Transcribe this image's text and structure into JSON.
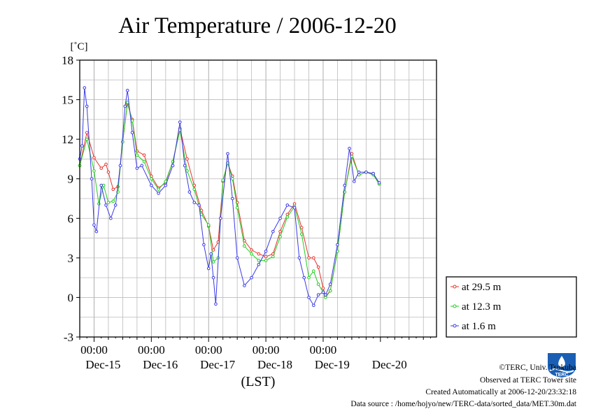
{
  "chart_data": {
    "type": "line",
    "title": "Air Temperature / 2006-12-20",
    "ylabel": "[˚C]",
    "xlabel": "(LST)",
    "ylim": [
      -3,
      18
    ],
    "yticks": [
      "-3",
      "0",
      "3",
      "6",
      "9",
      "12",
      "15",
      "18"
    ],
    "grid": true,
    "legend_position": "bottom-right (outside plot)",
    "x_start": "2006-12-14 18:00",
    "x_end": "2006-12-20 23:30",
    "time_ticks": [
      "00:00",
      "00:00",
      "00:00",
      "00:00",
      "00:00"
    ],
    "day_labels": [
      "Dec-15",
      "Dec-16",
      "Dec-17",
      "Dec-18",
      "Dec-19",
      "Dec-20"
    ],
    "series": [
      {
        "name": "at 29.5 m",
        "color": "#e8322c",
        "points": [
          [
            "2006-12-14 18:00",
            10.0
          ],
          [
            "2006-12-14 21:00",
            12.5
          ],
          [
            "2006-12-15 00:00",
            10.6
          ],
          [
            "2006-12-15 03:00",
            9.8
          ],
          [
            "2006-12-15 05:00",
            10.1
          ],
          [
            "2006-12-15 06:00",
            9.5
          ],
          [
            "2006-12-15 08:00",
            8.2
          ],
          [
            "2006-12-15 10:00",
            8.4
          ],
          [
            "2006-12-15 12:00",
            11.8
          ],
          [
            "2006-12-15 14:00",
            14.7
          ],
          [
            "2006-12-15 16:00",
            13.5
          ],
          [
            "2006-12-15 18:00",
            11.1
          ],
          [
            "2006-12-15 21:00",
            10.8
          ],
          [
            "2006-12-16 00:00",
            9.2
          ],
          [
            "2006-12-16 03:00",
            8.3
          ],
          [
            "2006-12-16 06:00",
            8.7
          ],
          [
            "2006-12-16 09:00",
            10.3
          ],
          [
            "2006-12-16 12:00",
            12.8
          ],
          [
            "2006-12-16 15:00",
            10.5
          ],
          [
            "2006-12-16 18:00",
            8.5
          ],
          [
            "2006-12-16 21:00",
            6.6
          ],
          [
            "2006-12-17 00:00",
            5.4
          ],
          [
            "2006-12-17 02:00",
            3.6
          ],
          [
            "2006-12-17 04:00",
            4.2
          ],
          [
            "2006-12-17 06:00",
            8.8
          ],
          [
            "2006-12-17 08:00",
            10.2
          ],
          [
            "2006-12-17 10:00",
            9.2
          ],
          [
            "2006-12-17 12:00",
            7.2
          ],
          [
            "2006-12-17 15:00",
            4.3
          ],
          [
            "2006-12-17 18:00",
            3.6
          ],
          [
            "2006-12-17 21:00",
            3.3
          ],
          [
            "2006-12-18 00:00",
            3.1
          ],
          [
            "2006-12-18 03:00",
            3.3
          ],
          [
            "2006-12-18 06:00",
            5.0
          ],
          [
            "2006-12-18 09:00",
            6.3
          ],
          [
            "2006-12-18 12:00",
            7.1
          ],
          [
            "2006-12-18 15:00",
            5.3
          ],
          [
            "2006-12-18 18:00",
            3.0
          ],
          [
            "2006-12-18 20:00",
            3.0
          ],
          [
            "2006-12-18 22:00",
            2.3
          ],
          [
            "2006-12-19 00:00",
            0.7
          ],
          [
            "2006-12-19 01:00",
            0.1
          ],
          [
            "2006-12-19 03:00",
            0.5
          ],
          [
            "2006-12-19 06:00",
            3.5
          ],
          [
            "2006-12-19 09:00",
            8.0
          ],
          [
            "2006-12-19 12:00",
            10.9
          ],
          [
            "2006-12-19 15:00",
            9.3
          ],
          [
            "2006-12-19 18:00",
            9.5
          ],
          [
            "2006-12-19 21:00",
            9.4
          ],
          [
            "2006-12-19 23:30",
            8.6
          ]
        ]
      },
      {
        "name": "at 12.3 m",
        "color": "#22cc22",
        "points": [
          [
            "2006-12-14 18:00",
            10.0
          ],
          [
            "2006-12-14 21:00",
            12.0
          ],
          [
            "2006-12-15 00:00",
            9.6
          ],
          [
            "2006-12-15 02:00",
            7.1
          ],
          [
            "2006-12-15 04:00",
            8.5
          ],
          [
            "2006-12-15 06:00",
            7.2
          ],
          [
            "2006-12-15 08:00",
            7.3
          ],
          [
            "2006-12-15 10:00",
            8.0
          ],
          [
            "2006-12-15 12:00",
            11.8
          ],
          [
            "2006-12-15 14:00",
            14.8
          ],
          [
            "2006-12-15 16:00",
            13.4
          ],
          [
            "2006-12-15 18:00",
            10.8
          ],
          [
            "2006-12-15 21:00",
            10.3
          ],
          [
            "2006-12-16 00:00",
            9.0
          ],
          [
            "2006-12-16 03:00",
            8.2
          ],
          [
            "2006-12-16 06:00",
            8.8
          ],
          [
            "2006-12-16 09:00",
            10.3
          ],
          [
            "2006-12-16 12:00",
            12.7
          ],
          [
            "2006-12-16 15:00",
            9.6
          ],
          [
            "2006-12-16 18:00",
            8.2
          ],
          [
            "2006-12-16 21:00",
            6.3
          ],
          [
            "2006-12-17 00:00",
            5.5
          ],
          [
            "2006-12-17 02:00",
            2.7
          ],
          [
            "2006-12-17 04:00",
            3.0
          ],
          [
            "2006-12-17 06:00",
            8.9
          ],
          [
            "2006-12-17 08:00",
            10.2
          ],
          [
            "2006-12-17 10:00",
            9.0
          ],
          [
            "2006-12-17 12:00",
            6.8
          ],
          [
            "2006-12-17 15:00",
            3.9
          ],
          [
            "2006-12-17 18:00",
            3.3
          ],
          [
            "2006-12-17 21:00",
            2.8
          ],
          [
            "2006-12-18 00:00",
            2.8
          ],
          [
            "2006-12-18 03:00",
            3.1
          ],
          [
            "2006-12-18 06:00",
            4.6
          ],
          [
            "2006-12-18 09:00",
            6.1
          ],
          [
            "2006-12-18 12:00",
            6.9
          ],
          [
            "2006-12-18 15:00",
            4.8
          ],
          [
            "2006-12-18 18:00",
            1.5
          ],
          [
            "2006-12-18 20:00",
            2.0
          ],
          [
            "2006-12-18 22:00",
            1.0
          ],
          [
            "2006-12-19 00:00",
            0.4
          ],
          [
            "2006-12-19 01:00",
            0.0
          ],
          [
            "2006-12-19 03:00",
            0.5
          ],
          [
            "2006-12-19 06:00",
            3.5
          ],
          [
            "2006-12-19 09:00",
            8.0
          ],
          [
            "2006-12-19 12:00",
            10.7
          ],
          [
            "2006-12-19 15:00",
            9.3
          ],
          [
            "2006-12-19 18:00",
            9.5
          ],
          [
            "2006-12-19 21:00",
            9.3
          ],
          [
            "2006-12-19 23:30",
            8.6
          ]
        ]
      },
      {
        "name": "at 1.6 m",
        "color": "#3a3ae8",
        "points": [
          [
            "2006-12-14 18:00",
            10.5
          ],
          [
            "2006-12-14 19:00",
            11.5
          ],
          [
            "2006-12-14 20:00",
            15.9
          ],
          [
            "2006-12-14 21:00",
            14.5
          ],
          [
            "2006-12-14 23:00",
            9.0
          ],
          [
            "2006-12-15 00:00",
            5.5
          ],
          [
            "2006-12-15 01:00",
            5.0
          ],
          [
            "2006-12-15 03:00",
            8.5
          ],
          [
            "2006-12-15 05:00",
            7.0
          ],
          [
            "2006-12-15 07:00",
            6.0
          ],
          [
            "2006-12-15 09:00",
            7.0
          ],
          [
            "2006-12-15 11:00",
            10.0
          ],
          [
            "2006-12-15 13:00",
            14.5
          ],
          [
            "2006-12-15 14:00",
            15.7
          ],
          [
            "2006-12-15 16:00",
            12.5
          ],
          [
            "2006-12-15 18:00",
            9.8
          ],
          [
            "2006-12-15 20:00",
            10.0
          ],
          [
            "2006-12-16 00:00",
            8.5
          ],
          [
            "2006-12-16 03:00",
            7.9
          ],
          [
            "2006-12-16 06:00",
            8.5
          ],
          [
            "2006-12-16 09:00",
            10.0
          ],
          [
            "2006-12-16 12:00",
            13.3
          ],
          [
            "2006-12-16 14:00",
            10.0
          ],
          [
            "2006-12-16 16:00",
            8.0
          ],
          [
            "2006-12-16 18:00",
            7.2
          ],
          [
            "2006-12-16 20:00",
            7.0
          ],
          [
            "2006-12-16 22:00",
            4.0
          ],
          [
            "2006-12-17 00:00",
            2.2
          ],
          [
            "2006-12-17 01:00",
            3.3
          ],
          [
            "2006-12-17 02:00",
            1.5
          ],
          [
            "2006-12-17 03:00",
            -0.5
          ],
          [
            "2006-12-17 05:00",
            6.0
          ],
          [
            "2006-12-17 08:00",
            10.9
          ],
          [
            "2006-12-17 10:00",
            7.5
          ],
          [
            "2006-12-17 12:00",
            3.0
          ],
          [
            "2006-12-17 15:00",
            0.9
          ],
          [
            "2006-12-17 18:00",
            1.5
          ],
          [
            "2006-12-17 21:00",
            2.5
          ],
          [
            "2006-12-18 00:00",
            3.5
          ],
          [
            "2006-12-18 03:00",
            5.0
          ],
          [
            "2006-12-18 06:00",
            6.0
          ],
          [
            "2006-12-18 09:00",
            7.0
          ],
          [
            "2006-12-18 12:00",
            6.8
          ],
          [
            "2006-12-18 14:00",
            3.0
          ],
          [
            "2006-12-18 16:00",
            1.5
          ],
          [
            "2006-12-18 18:00",
            0.0
          ],
          [
            "2006-12-18 20:00",
            -0.6
          ],
          [
            "2006-12-18 22:00",
            0.2
          ],
          [
            "2006-12-19 00:00",
            0.4
          ],
          [
            "2006-12-19 01:00",
            0.2
          ],
          [
            "2006-12-19 03:00",
            1.0
          ],
          [
            "2006-12-19 06:00",
            4.0
          ],
          [
            "2006-12-19 09:00",
            8.5
          ],
          [
            "2006-12-19 11:00",
            11.3
          ],
          [
            "2006-12-19 13:00",
            8.8
          ],
          [
            "2006-12-19 15:00",
            9.5
          ],
          [
            "2006-12-19 18:00",
            9.5
          ],
          [
            "2006-12-19 21:00",
            9.4
          ],
          [
            "2006-12-19 23:30",
            8.7
          ]
        ]
      }
    ]
  },
  "footer": {
    "copyright": "©TERC, Univ. Tsukuba",
    "observed": "Observed at TERC Tower site",
    "created": "Created Automatically at 2006-12-20/23:32:18",
    "source": "Data source : /home/hojyo/new/TERC-data/sorted_data/MET.30m.dat"
  },
  "logo": {
    "text": "TERC",
    "color": "#1a5fb4"
  }
}
